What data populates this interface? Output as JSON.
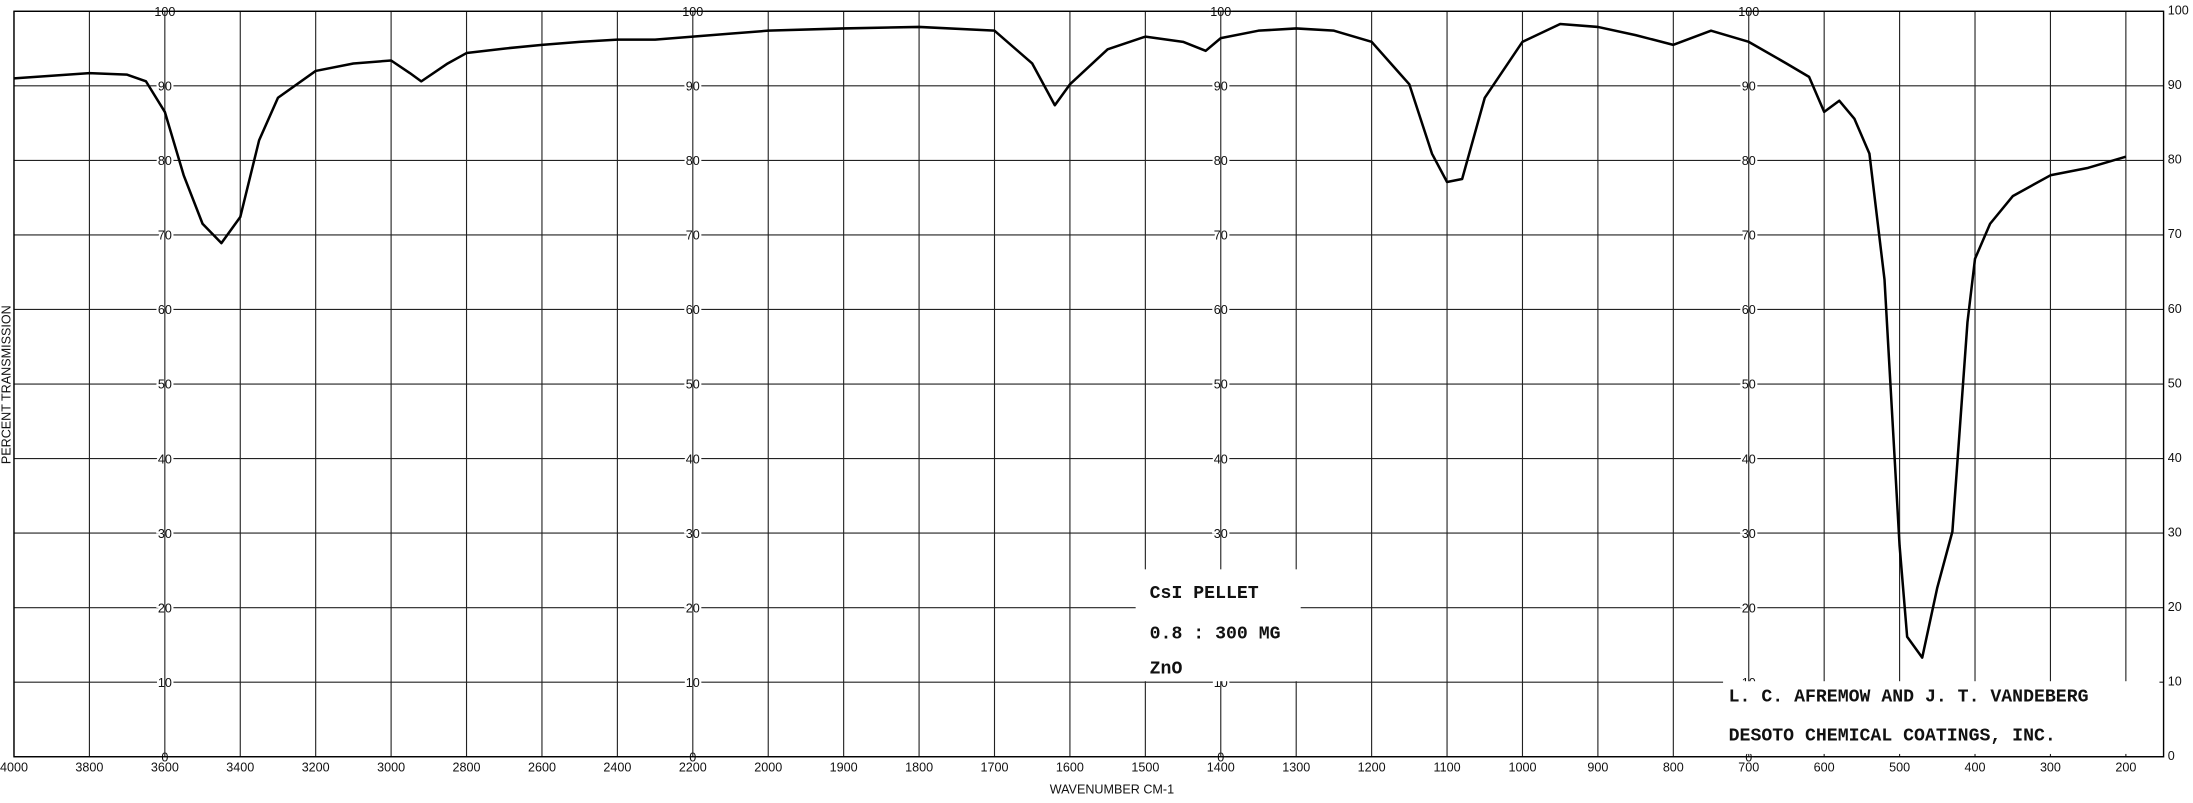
{
  "chart_data": {
    "type": "line",
    "x_label": "WAVENUMBER CM-1",
    "y_label": "PERCENT TRANSMISSION",
    "annotations": [
      "CsI PELLET",
      "0.8 : 300 MG",
      "ZnO",
      "L. C. AFREMOW AND J. T. VANDEBERG",
      "DESOTO CHEMICAL COATINGS, INC."
    ],
    "xlim": [
      4000,
      150
    ],
    "xticks": [
      4000,
      3800,
      3600,
      3400,
      3200,
      3000,
      2800,
      2600,
      2400,
      2200,
      2000,
      1900,
      1800,
      1700,
      1600,
      1500,
      1400,
      1300,
      1200,
      1100,
      1000,
      900,
      800,
      700,
      600,
      500,
      400,
      300,
      200
    ],
    "ylim": [
      0,
      100
    ],
    "yticks": [
      0,
      10,
      20,
      30,
      40,
      50,
      60,
      70,
      80,
      90,
      100
    ],
    "grid": true,
    "color": "#000000",
    "x": [
      4000,
      3800,
      3700,
      3650,
      3600,
      3550,
      3500,
      3450,
      3400,
      3350,
      3300,
      3200,
      3100,
      3000,
      2950,
      2920,
      2850,
      2800,
      2700,
      2600,
      2500,
      2400,
      2300,
      2200,
      2100,
      2000,
      1900,
      1800,
      1700,
      1650,
      1620,
      1600,
      1550,
      1500,
      1450,
      1420,
      1400,
      1350,
      1300,
      1250,
      1200,
      1150,
      1120,
      1100,
      1080,
      1050,
      1000,
      950,
      900,
      850,
      800,
      750,
      700,
      650,
      620,
      600,
      580,
      560,
      540,
      520,
      500,
      490,
      470,
      450,
      430,
      410,
      400,
      380,
      350,
      300,
      250,
      200
    ],
    "values": [
      91,
      91.7,
      91.5,
      90.6,
      86.5,
      78,
      71.5,
      68.9,
      72.4,
      82.7,
      88.4,
      92,
      93,
      93.4,
      91.7,
      90.6,
      93,
      94.4,
      95,
      95.5,
      95.9,
      96.2,
      96.2,
      96.6,
      97,
      97.4,
      97.7,
      97.9,
      97.4,
      93,
      87.4,
      90.2,
      94.9,
      96.6,
      95.9,
      94.7,
      96.4,
      97.4,
      97.7,
      97.4,
      95.9,
      90.2,
      80.9,
      77.1,
      77.5,
      88.4,
      95.9,
      98.3,
      97.9,
      96.8,
      95.5,
      97.4,
      95.9,
      93,
      91.2,
      86.5,
      88,
      85.6,
      80.9,
      64,
      28.3,
      16.1,
      13.3,
      22.7,
      30.2,
      58.3,
      66.8,
      71.5,
      75.2,
      78,
      79,
      80.5
    ]
  }
}
